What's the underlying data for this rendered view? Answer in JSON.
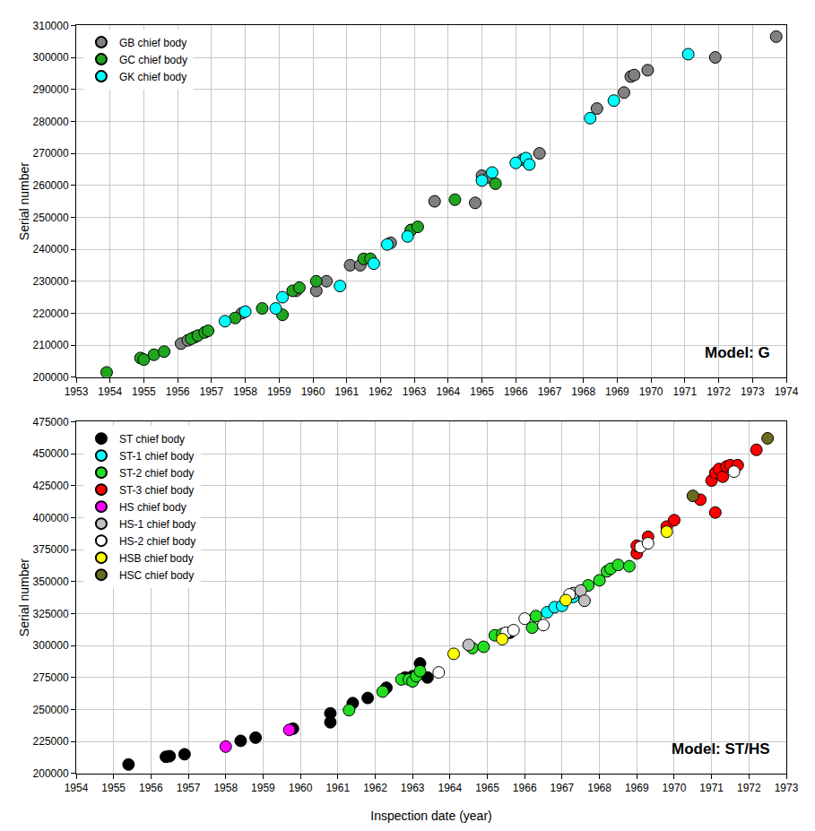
{
  "chart_data": [
    {
      "type": "scatter",
      "y_label": "Serial number",
      "annotation": "Model: G",
      "xlim": [
        1953,
        1974
      ],
      "xticks": [
        1953,
        1954,
        1955,
        1956,
        1957,
        1958,
        1959,
        1960,
        1961,
        1962,
        1963,
        1964,
        1965,
        1966,
        1967,
        1968,
        1969,
        1970,
        1971,
        1972,
        1973,
        1974
      ],
      "ylim": [
        200000,
        310000
      ],
      "yticks": [
        200000,
        210000,
        220000,
        230000,
        240000,
        250000,
        260000,
        270000,
        280000,
        290000,
        300000,
        310000
      ],
      "grid": true,
      "legend": "top left",
      "marker": "circle",
      "series": [
        {
          "name": "GB chief body",
          "color": "#808080",
          "x": [
            1956.1,
            1956.3,
            1956.5,
            1957.9,
            1959.5,
            1960.1,
            1960.4,
            1961.1,
            1961.4,
            1962.3,
            1962.9,
            1963.6,
            1964.8,
            1965.0,
            1965.2,
            1966.2,
            1966.7,
            1968.4,
            1969.2,
            1969.4,
            1969.5,
            1969.9,
            1971.9,
            1973.7
          ],
          "values": [
            210500,
            211500,
            212500,
            220000,
            227000,
            227000,
            230000,
            235000,
            235000,
            242000,
            246000,
            255000,
            254500,
            263000,
            262500,
            268000,
            270000,
            284000,
            289000,
            294000,
            294500,
            296000,
            300000,
            306500
          ]
        },
        {
          "name": "GC chief body",
          "color": "#1fa51f",
          "x": [
            1953.9,
            1954.9,
            1955.0,
            1955.3,
            1955.6,
            1956.4,
            1956.6,
            1956.8,
            1956.9,
            1957.7,
            1958.5,
            1959.1,
            1959.4,
            1959.6,
            1960.1,
            1961.5,
            1961.7,
            1962.9,
            1963.1,
            1964.2,
            1965.4
          ],
          "values": [
            201500,
            206000,
            205500,
            207000,
            208000,
            212000,
            213000,
            214000,
            214500,
            218500,
            221500,
            219500,
            227000,
            228000,
            230000,
            237000,
            237000,
            246000,
            247000,
            255500,
            260500
          ]
        },
        {
          "name": "GK chief body",
          "color": "#00ffff",
          "x": [
            1957.4,
            1958.0,
            1958.9,
            1959.1,
            1960.8,
            1961.8,
            1962.2,
            1962.8,
            1965.0,
            1965.3,
            1966.0,
            1966.3,
            1966.4,
            1968.2,
            1968.9,
            1971.1
          ],
          "values": [
            217500,
            220500,
            221500,
            225000,
            228500,
            235500,
            241500,
            244000,
            261500,
            264000,
            267000,
            268500,
            266500,
            281000,
            286500,
            301000
          ]
        }
      ]
    },
    {
      "type": "scatter",
      "x_label": "Inspection date (year)",
      "y_label": "Serial number",
      "annotation": "Model: ST/HS",
      "xlim": [
        1954,
        1973
      ],
      "xticks": [
        1954,
        1955,
        1956,
        1957,
        1958,
        1959,
        1960,
        1961,
        1962,
        1963,
        1964,
        1965,
        1966,
        1967,
        1968,
        1969,
        1970,
        1971,
        1972,
        1973
      ],
      "ylim": [
        200000,
        475000
      ],
      "yticks": [
        200000,
        225000,
        250000,
        275000,
        300000,
        325000,
        350000,
        375000,
        400000,
        425000,
        450000,
        475000
      ],
      "grid": true,
      "legend": "top left",
      "marker": "circle",
      "series": [
        {
          "name": "ST chief body",
          "color": "#000000",
          "x": [
            1955.4,
            1956.4,
            1956.5,
            1956.9,
            1958.4,
            1958.8,
            1959.8,
            1960.8,
            1960.8,
            1961.4,
            1961.8,
            1962.3,
            1962.8,
            1963.0,
            1963.2,
            1963.4,
            1965.6
          ],
          "values": [
            207000,
            213000,
            213500,
            215000,
            225500,
            228000,
            235000,
            240000,
            247000,
            255000,
            259000,
            267000,
            275000,
            276000,
            286000,
            275000,
            310000
          ]
        },
        {
          "name": "ST-1 chief body",
          "color": "#00ffff",
          "x": [
            1966.6,
            1966.8,
            1967.0,
            1967.3
          ],
          "values": [
            326000,
            330000,
            331000,
            338000
          ]
        },
        {
          "name": "ST-2 chief body",
          "color": "#22dd22",
          "x": [
            1961.3,
            1962.2,
            1962.7,
            1962.9,
            1963.0,
            1963.1,
            1963.2,
            1964.6,
            1964.9,
            1965.2,
            1965.4,
            1966.2,
            1966.3,
            1967.7,
            1968.0,
            1968.2,
            1968.3,
            1968.5,
            1968.8
          ],
          "values": [
            249500,
            264000,
            273500,
            273500,
            272000,
            276000,
            280000,
            298000,
            299000,
            308000,
            309000,
            314000,
            323000,
            347000,
            351000,
            358000,
            360000,
            363000,
            362000
          ]
        },
        {
          "name": "ST-3 chief body",
          "color": "#ff0000",
          "x": [
            1969.0,
            1969.0,
            1969.3,
            1969.8,
            1970.0,
            1970.7,
            1971.0,
            1971.1,
            1971.1,
            1971.2,
            1971.3,
            1971.4,
            1971.5,
            1971.7,
            1972.2
          ],
          "values": [
            372000,
            378000,
            385000,
            393000,
            398000,
            414000,
            429000,
            435000,
            404000,
            438000,
            432000,
            440000,
            441000,
            441000,
            453000
          ]
        },
        {
          "name": "HS chief body",
          "color": "#ff00ff",
          "x": [
            1958.0,
            1959.7
          ],
          "values": [
            221000,
            234000
          ]
        },
        {
          "name": "HS-1 chief body",
          "color": "#c0c0c0",
          "x": [
            1964.5,
            1967.3,
            1967.5,
            1967.6
          ],
          "values": [
            300500,
            341000,
            343000,
            335000
          ]
        },
        {
          "name": "HS-2 chief body",
          "color": "#ffffff",
          "x": [
            1963.7,
            1965.5,
            1965.7,
            1966.0,
            1966.5,
            1967.2,
            1969.1,
            1969.3,
            1971.6
          ],
          "values": [
            279000,
            310000,
            312000,
            321000,
            316000,
            340000,
            377000,
            380000,
            436000
          ]
        },
        {
          "name": "HSB chief body",
          "color": "#ffff00",
          "x": [
            1964.1,
            1965.4,
            1967.1,
            1969.8
          ],
          "values": [
            293500,
            305000,
            335500,
            389000
          ]
        },
        {
          "name": "HSC chief body",
          "color": "#6b6b1f",
          "x": [
            1970.5,
            1972.5
          ],
          "values": [
            417000,
            462000
          ]
        }
      ]
    }
  ]
}
